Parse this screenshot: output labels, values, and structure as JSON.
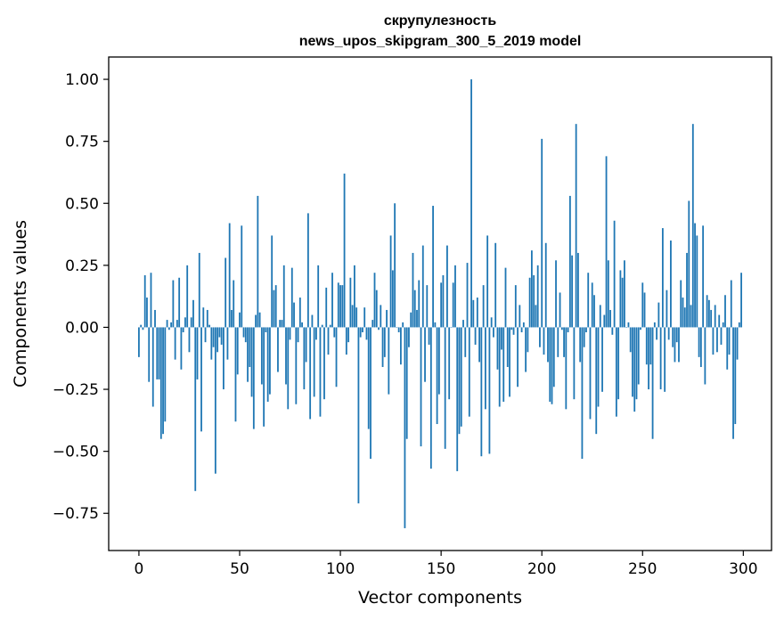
{
  "chart_data": {
    "type": "bar",
    "title": "скрупулезность",
    "subtitle": "news_upos_skipgram_300_5_2019 model",
    "xlabel": "Vector components",
    "ylabel": "Components values",
    "xlim": [
      -15,
      314
    ],
    "ylim": [
      -0.9,
      1.09
    ],
    "xticks": [
      0,
      50,
      100,
      150,
      200,
      250,
      300
    ],
    "yticks": [
      -0.75,
      -0.5,
      -0.25,
      0.0,
      0.25,
      0.5,
      0.75,
      1.0
    ],
    "ytick_labels": [
      "−0.75",
      "−0.50",
      "−0.25",
      "0.00",
      "0.25",
      "0.50",
      "0.75",
      "1.00"
    ],
    "bar_color": "#1f77b4",
    "grid": false,
    "values": [
      -0.12,
      0.01,
      -0.01,
      0.21,
      0.12,
      -0.22,
      0.22,
      -0.32,
      0.07,
      -0.21,
      -0.21,
      -0.45,
      -0.43,
      -0.38,
      0.03,
      -0.01,
      0.02,
      0.19,
      -0.13,
      0.03,
      0.2,
      -0.17,
      -0.02,
      0.04,
      0.25,
      -0.1,
      0.04,
      0.11,
      -0.66,
      -0.21,
      0.3,
      -0.42,
      0.08,
      -0.06,
      0.07,
      0.01,
      -0.13,
      -0.08,
      -0.59,
      -0.1,
      -0.04,
      -0.07,
      -0.25,
      0.28,
      -0.13,
      0.42,
      0.07,
      0.19,
      -0.38,
      -0.19,
      0.06,
      0.41,
      -0.04,
      -0.06,
      -0.22,
      -0.16,
      -0.28,
      -0.41,
      0.05,
      0.53,
      0.06,
      -0.23,
      -0.4,
      -0.02,
      -0.3,
      -0.27,
      0.37,
      0.15,
      0.17,
      -0.18,
      0.03,
      0.03,
      0.25,
      -0.23,
      -0.33,
      -0.05,
      0.24,
      0.1,
      -0.31,
      -0.06,
      0.12,
      0.02,
      -0.25,
      -0.14,
      0.46,
      -0.37,
      0.05,
      -0.28,
      -0.05,
      0.25,
      -0.36,
      0.01,
      -0.29,
      0.16,
      -0.11,
      0.01,
      0.22,
      -0.04,
      -0.24,
      0.18,
      0.17,
      0.17,
      0.62,
      -0.11,
      -0.06,
      0.2,
      0.09,
      0.25,
      0.08,
      -0.71,
      -0.04,
      -0.02,
      0.08,
      -0.05,
      -0.41,
      -0.53,
      0.03,
      0.22,
      0.15,
      -0.01,
      0.09,
      -0.16,
      -0.12,
      0.07,
      -0.27,
      0.37,
      0.23,
      0.5,
      0.0,
      -0.02,
      -0.15,
      0.02,
      -0.81,
      -0.45,
      -0.08,
      0.06,
      0.3,
      0.15,
      0.07,
      0.19,
      -0.48,
      0.33,
      -0.22,
      0.17,
      -0.07,
      -0.57,
      0.49,
      0.02,
      -0.39,
      -0.27,
      0.18,
      0.21,
      -0.49,
      0.33,
      -0.29,
      0.0,
      0.18,
      0.25,
      -0.58,
      -0.43,
      -0.4,
      0.03,
      -0.12,
      0.26,
      -0.36,
      1.0,
      0.11,
      -0.07,
      0.12,
      -0.14,
      -0.52,
      0.17,
      -0.33,
      0.37,
      -0.51,
      0.04,
      -0.04,
      0.34,
      -0.17,
      -0.32,
      -0.09,
      -0.3,
      0.24,
      -0.16,
      -0.28,
      -0.01,
      -0.03,
      0.17,
      -0.24,
      0.09,
      -0.02,
      0.02,
      -0.18,
      -0.1,
      0.2,
      0.31,
      0.21,
      0.09,
      0.25,
      -0.08,
      0.76,
      -0.11,
      0.34,
      -0.14,
      -0.3,
      -0.31,
      -0.24,
      0.27,
      -0.12,
      0.14,
      -0.01,
      -0.12,
      -0.33,
      -0.02,
      0.53,
      0.29,
      -0.29,
      0.82,
      0.3,
      -0.14,
      -0.53,
      -0.08,
      -0.02,
      0.22,
      -0.37,
      0.18,
      0.13,
      -0.43,
      -0.32,
      0.09,
      -0.26,
      0.05,
      0.69,
      0.27,
      0.07,
      -0.03,
      0.43,
      -0.36,
      -0.29,
      0.23,
      0.2,
      0.27,
      0.0,
      0.02,
      -0.1,
      -0.28,
      -0.34,
      -0.29,
      -0.23,
      -0.01,
      0.18,
      0.14,
      -0.15,
      -0.25,
      -0.15,
      -0.45,
      0.02,
      -0.05,
      0.1,
      -0.25,
      0.4,
      -0.26,
      0.15,
      -0.05,
      0.35,
      -0.08,
      -0.14,
      -0.06,
      -0.14,
      0.19,
      0.12,
      0.08,
      0.3,
      0.51,
      0.09,
      0.82,
      0.42,
      0.37,
      -0.12,
      -0.16,
      0.41,
      -0.23,
      0.13,
      0.11,
      0.07,
      -0.11,
      0.09,
      -0.1,
      0.05,
      -0.07,
      0.02,
      0.13,
      -0.17,
      -0.11,
      0.19,
      -0.45,
      -0.39,
      -0.13,
      0.02,
      0.22
    ]
  }
}
